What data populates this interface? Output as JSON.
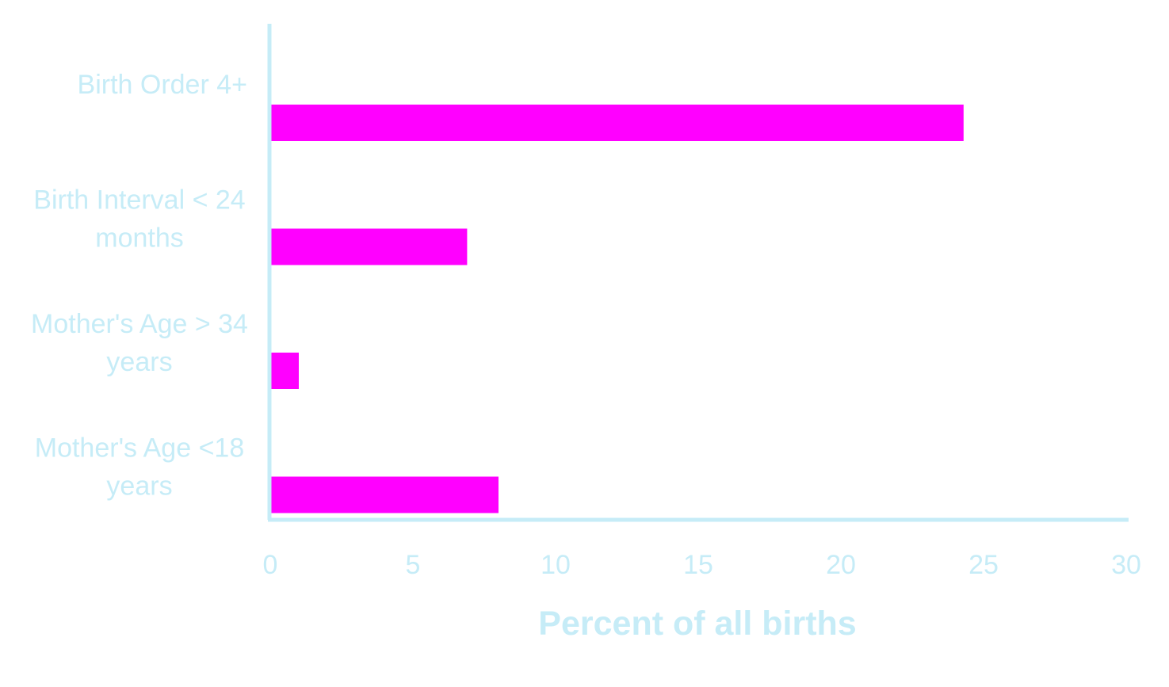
{
  "chart_data": {
    "type": "bar",
    "orientation": "horizontal",
    "title": "",
    "xlabel": "Percent of all births",
    "ylabel": "",
    "categories": [
      [
        "Birth Order 4+"
      ],
      [
        "Birth Interval < 24",
        "months"
      ],
      [
        "Mother's Age > 34",
        "years"
      ],
      [
        "Mother's Age <18",
        "years"
      ]
    ],
    "values": [
      24.3,
      6.9,
      1.0,
      8.0
    ],
    "xlim": [
      0,
      30
    ],
    "xticks": [
      "0",
      "5",
      "10",
      "15",
      "20",
      "25",
      "30"
    ],
    "grid": false,
    "legend": "none",
    "colors": {
      "bar": "#ff00ff",
      "axis": "#c6ecf7",
      "text": "#c6ecf7"
    }
  }
}
